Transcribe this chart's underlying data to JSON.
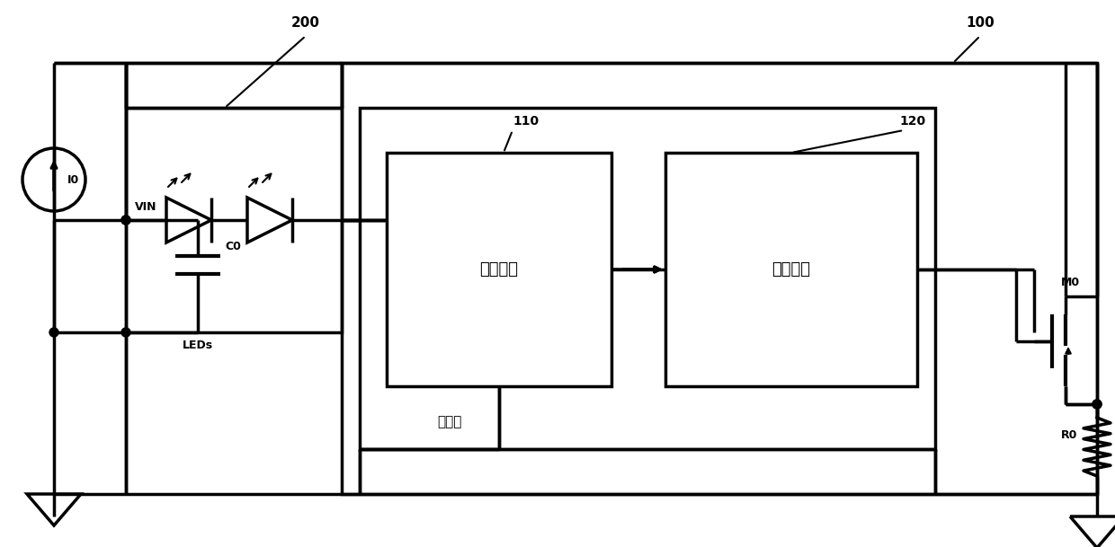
{
  "bg_color": "#ffffff",
  "line_color": "#000000",
  "lw": 2.5,
  "fig_width": 12.4,
  "fig_height": 6.09,
  "labels": {
    "num_200": "200",
    "num_100": "100",
    "num_110": "110",
    "num_120": "120",
    "VIN": "VIN",
    "I0": "I0",
    "C0": "C0",
    "LEDs": "LEDs",
    "sampling": "采样模块",
    "control": "控制模块",
    "controller": "控制器",
    "M0": "M0",
    "R0": "R0"
  }
}
